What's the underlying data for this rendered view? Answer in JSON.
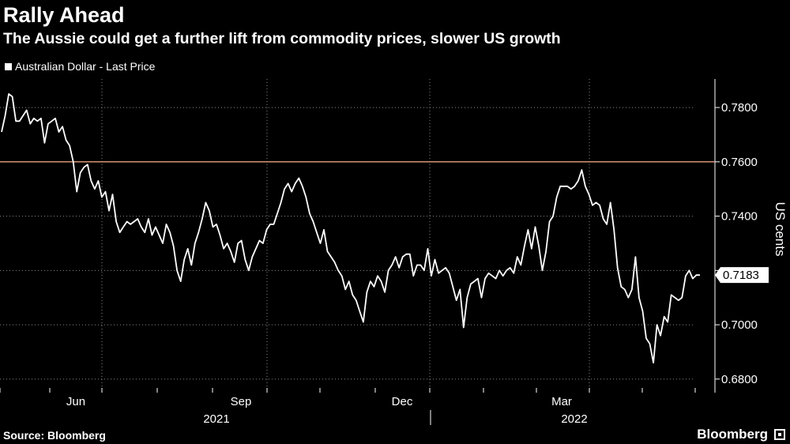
{
  "header": {
    "title": "Rally Ahead",
    "subtitle": "The Aussie could get a further lift from commodity prices, slower US growth"
  },
  "legend": {
    "label": "Australian Dollar - Last Price"
  },
  "footer": {
    "source": "Source: Bloomberg",
    "brand": "Bloomberg"
  },
  "colors": {
    "background": "#000000",
    "line": "#ffffff",
    "reference_line": "#e9a07f",
    "grid": "#8a8a8a"
  },
  "chart_data": {
    "type": "line",
    "title": "Rally Ahead",
    "subtitle": "The Aussie could get a further lift from commodity prices, slower US growth",
    "ylabel": "US cents",
    "ylim": [
      0.675,
      0.7905
    ],
    "yticks": [
      0.68,
      0.7,
      0.72,
      0.74,
      0.76,
      0.78
    ],
    "ytick_labels": [
      "0.6800",
      "0.7000",
      "",
      "0.7400",
      "0.7600",
      "0.7800"
    ],
    "x_ticks": [
      "Jun",
      "Sep",
      "Dec",
      "Mar"
    ],
    "x_year_labels": [
      "2021",
      "2022"
    ],
    "grid": true,
    "legend_position": "top-left",
    "reference_line": 0.76,
    "last_value": 0.7183,
    "last_value_label": "0.7183",
    "series": [
      {
        "name": "Australian Dollar - Last Price",
        "values": [
          0.771,
          0.777,
          0.785,
          0.784,
          0.775,
          0.775,
          0.777,
          0.779,
          0.774,
          0.776,
          0.775,
          0.776,
          0.767,
          0.774,
          0.775,
          0.776,
          0.771,
          0.773,
          0.768,
          0.766,
          0.76,
          0.749,
          0.756,
          0.758,
          0.759,
          0.753,
          0.75,
          0.753,
          0.747,
          0.749,
          0.742,
          0.748,
          0.738,
          0.734,
          0.736,
          0.738,
          0.737,
          0.738,
          0.739,
          0.736,
          0.734,
          0.739,
          0.733,
          0.736,
          0.733,
          0.73,
          0.737,
          0.734,
          0.729,
          0.72,
          0.716,
          0.724,
          0.728,
          0.722,
          0.73,
          0.734,
          0.739,
          0.745,
          0.742,
          0.736,
          0.737,
          0.733,
          0.728,
          0.73,
          0.727,
          0.723,
          0.73,
          0.731,
          0.724,
          0.72,
          0.725,
          0.728,
          0.731,
          0.73,
          0.735,
          0.737,
          0.737,
          0.741,
          0.745,
          0.75,
          0.752,
          0.749,
          0.752,
          0.754,
          0.751,
          0.747,
          0.741,
          0.738,
          0.734,
          0.73,
          0.735,
          0.727,
          0.725,
          0.723,
          0.72,
          0.718,
          0.713,
          0.716,
          0.711,
          0.709,
          0.705,
          0.701,
          0.712,
          0.716,
          0.714,
          0.718,
          0.716,
          0.712,
          0.72,
          0.722,
          0.725,
          0.721,
          0.725,
          0.726,
          0.726,
          0.718,
          0.722,
          0.722,
          0.72,
          0.728,
          0.718,
          0.724,
          0.719,
          0.72,
          0.721,
          0.719,
          0.714,
          0.709,
          0.713,
          0.699,
          0.71,
          0.715,
          0.716,
          0.717,
          0.71,
          0.717,
          0.719,
          0.718,
          0.717,
          0.72,
          0.718,
          0.72,
          0.721,
          0.719,
          0.725,
          0.722,
          0.729,
          0.735,
          0.728,
          0.736,
          0.729,
          0.72,
          0.727,
          0.738,
          0.74,
          0.747,
          0.751,
          0.751,
          0.751,
          0.75,
          0.751,
          0.753,
          0.757,
          0.751,
          0.748,
          0.744,
          0.745,
          0.744,
          0.739,
          0.737,
          0.745,
          0.735,
          0.721,
          0.714,
          0.713,
          0.71,
          0.713,
          0.725,
          0.71,
          0.705,
          0.695,
          0.693,
          0.686,
          0.7,
          0.696,
          0.703,
          0.701,
          0.711,
          0.71,
          0.709,
          0.71,
          0.718,
          0.72,
          0.717,
          0.7183,
          0.7183
        ]
      }
    ]
  }
}
